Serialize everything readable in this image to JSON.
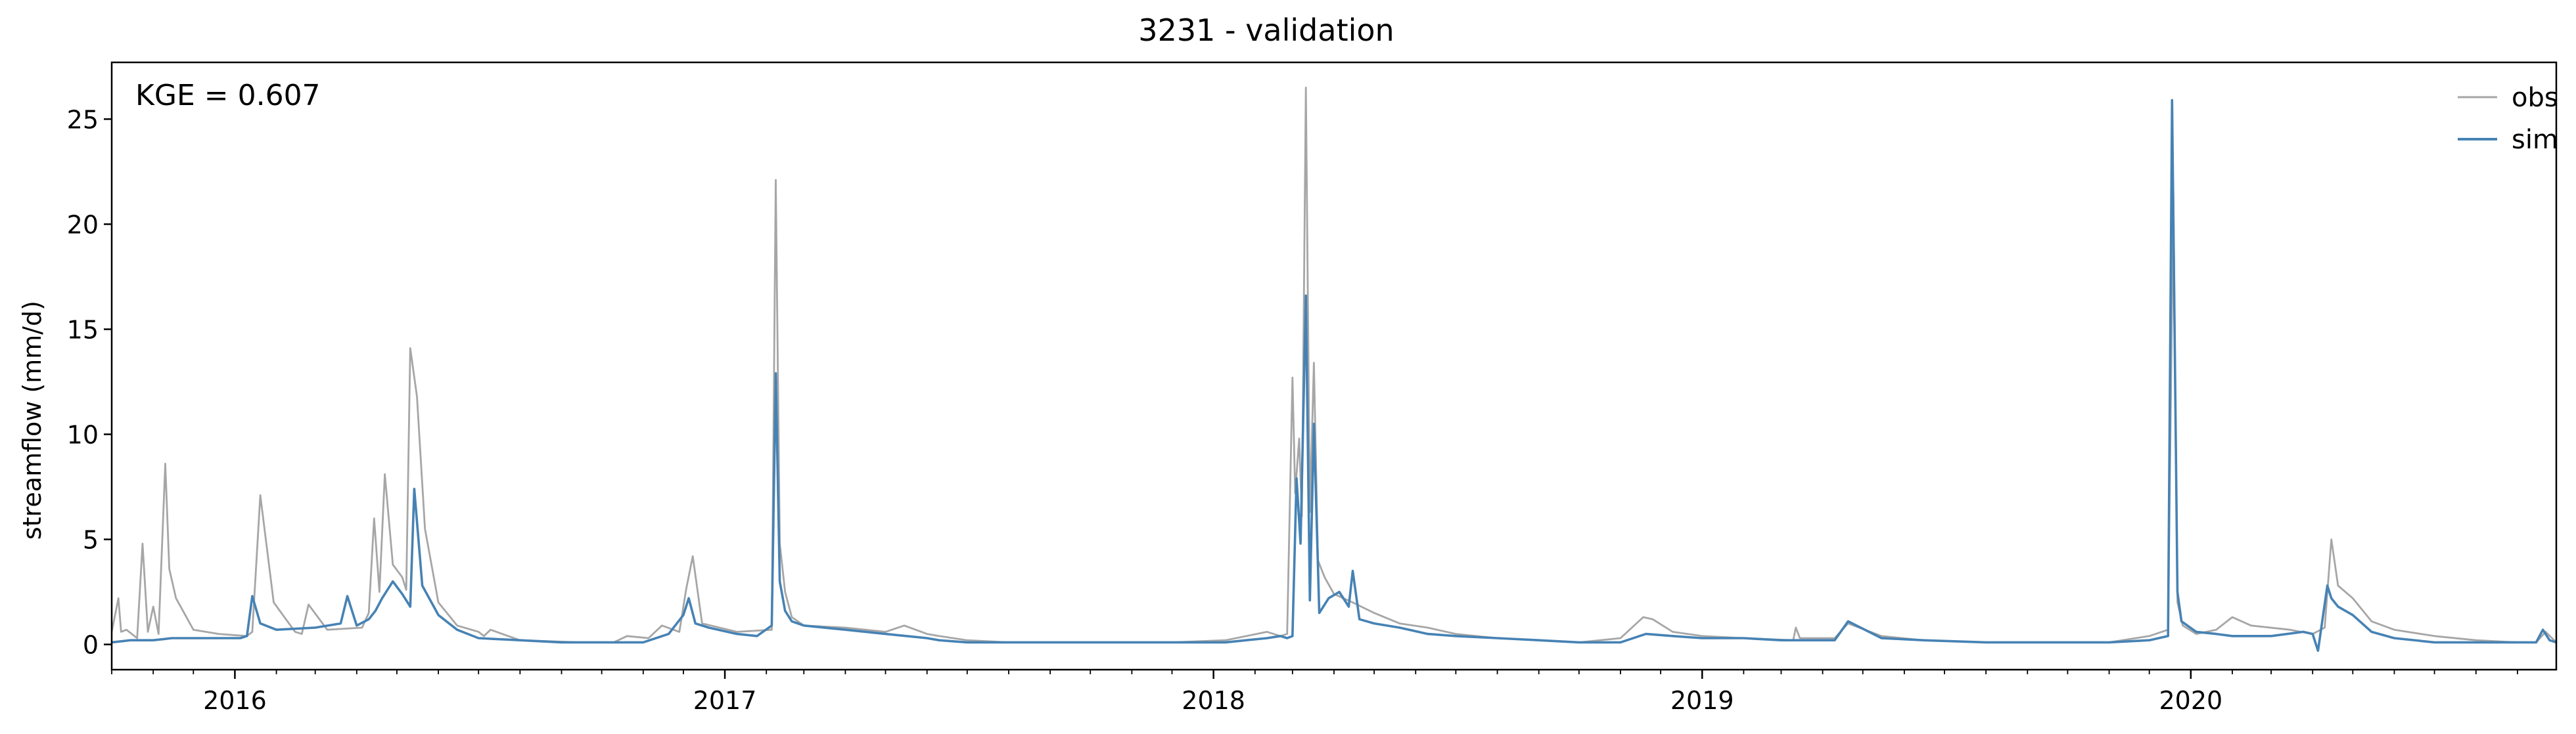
{
  "colors": {
    "obs": "#a6a6a6",
    "sim": "#4682b4",
    "axis": "#000000",
    "background": "#ffffff"
  },
  "chart_data": {
    "type": "line",
    "title": "3231 - validation",
    "xlabel": "",
    "ylabel": "streamflow (mm/d)",
    "annotation": "KGE = 0.607",
    "xlim": [
      "2015-10-01",
      "2020-09-30"
    ],
    "ylim": [
      -1.2,
      27.7
    ],
    "grid": false,
    "legend_position": "top-right",
    "x_ticks": [
      {
        "date": "2016-01-01",
        "label": "2016"
      },
      {
        "date": "2017-01-01",
        "label": "2017"
      },
      {
        "date": "2018-01-01",
        "label": "2018"
      },
      {
        "date": "2019-01-01",
        "label": "2019"
      },
      {
        "date": "2020-01-01",
        "label": "2020"
      }
    ],
    "y_ticks": [
      {
        "value": 0,
        "label": "0"
      },
      {
        "value": 5,
        "label": "5"
      },
      {
        "value": 10,
        "label": "10"
      },
      {
        "value": 15,
        "label": "15"
      },
      {
        "value": 20,
        "label": "20"
      },
      {
        "value": 25,
        "label": "25"
      }
    ],
    "series": [
      {
        "name": "obs",
        "color": "#a6a6a6",
        "x": [
          "2015-10-01",
          "2015-10-06",
          "2015-10-08",
          "2015-10-12",
          "2015-10-20",
          "2015-10-24",
          "2015-10-28",
          "2015-11-01",
          "2015-11-05",
          "2015-11-10",
          "2015-11-13",
          "2015-11-18",
          "2015-12-01",
          "2015-12-20",
          "2016-01-10",
          "2016-01-14",
          "2016-01-20",
          "2016-01-30",
          "2016-02-15",
          "2016-02-20",
          "2016-02-25",
          "2016-03-10",
          "2016-04-05",
          "2016-04-10",
          "2016-04-14",
          "2016-04-18",
          "2016-04-22",
          "2016-04-28",
          "2016-05-05",
          "2016-05-08",
          "2016-05-11",
          "2016-05-16",
          "2016-05-22",
          "2016-06-01",
          "2016-06-15",
          "2016-07-01",
          "2016-07-05",
          "2016-07-10",
          "2016-08-01",
          "2016-09-15",
          "2016-10-10",
          "2016-10-20",
          "2016-11-05",
          "2016-11-15",
          "2016-11-28",
          "2016-12-03",
          "2016-12-08",
          "2016-12-15",
          "2017-01-10",
          "2017-02-05",
          "2017-02-08",
          "2017-02-11",
          "2017-02-15",
          "2017-02-20",
          "2017-03-01",
          "2017-04-01",
          "2017-05-01",
          "2017-05-15",
          "2017-06-01",
          "2017-06-10",
          "2017-07-01",
          "2017-08-01",
          "2017-10-01",
          "2017-12-01",
          "2018-01-10",
          "2018-02-10",
          "2018-02-20",
          "2018-02-25",
          "2018-03-01",
          "2018-03-03",
          "2018-03-06",
          "2018-03-08",
          "2018-03-11",
          "2018-03-14",
          "2018-03-17",
          "2018-03-20",
          "2018-03-25",
          "2018-04-01",
          "2018-04-15",
          "2018-05-01",
          "2018-05-20",
          "2018-06-10",
          "2018-07-01",
          "2018-08-01",
          "2018-09-01",
          "2018-10-01",
          "2018-11-01",
          "2018-11-18",
          "2018-11-25",
          "2018-12-10",
          "2019-01-01",
          "2019-02-01",
          "2019-03-10",
          "2019-03-12",
          "2019-03-15",
          "2019-04-10",
          "2019-04-20",
          "2019-05-15",
          "2019-06-15",
          "2019-08-01",
          "2019-09-01",
          "2019-10-01",
          "2019-11-01",
          "2019-12-01",
          "2019-12-15",
          "2019-12-19",
          "2019-12-22",
          "2019-12-26",
          "2020-01-05",
          "2020-01-20",
          "2020-02-01",
          "2020-02-15",
          "2020-03-15",
          "2020-04-01",
          "2020-04-10",
          "2020-04-15",
          "2020-04-20",
          "2020-05-01",
          "2020-05-15",
          "2020-06-01",
          "2020-07-01",
          "2020-08-01",
          "2020-09-01",
          "2020-09-15",
          "2020-09-22",
          "2020-09-30"
        ],
        "y": [
          0.6,
          2.2,
          0.6,
          0.7,
          0.3,
          4.8,
          0.6,
          1.8,
          0.5,
          8.6,
          3.6,
          2.2,
          0.7,
          0.5,
          0.4,
          0.6,
          7.1,
          2.0,
          0.6,
          0.5,
          1.9,
          0.7,
          0.8,
          1.5,
          6.0,
          2.5,
          8.1,
          3.8,
          3.2,
          2.6,
          14.1,
          11.8,
          5.5,
          2.0,
          0.9,
          0.6,
          0.4,
          0.7,
          0.2,
          0.1,
          0.1,
          0.4,
          0.3,
          0.9,
          0.6,
          2.6,
          4.2,
          1.0,
          0.6,
          0.7,
          22.1,
          4.8,
          2.5,
          1.3,
          0.9,
          0.8,
          0.6,
          0.9,
          0.5,
          0.4,
          0.2,
          0.1,
          0.1,
          0.1,
          0.2,
          0.6,
          0.4,
          0.5,
          12.7,
          7.2,
          9.8,
          6.1,
          26.5,
          6.3,
          13.4,
          4.0,
          3.2,
          2.4,
          2.0,
          1.5,
          1.0,
          0.8,
          0.5,
          0.3,
          0.2,
          0.1,
          0.3,
          1.3,
          1.2,
          0.6,
          0.4,
          0.3,
          0.2,
          0.8,
          0.3,
          0.3,
          1.0,
          0.4,
          0.2,
          0.1,
          0.1,
          0.1,
          0.1,
          0.4,
          0.7,
          21.4,
          2.0,
          0.9,
          0.5,
          0.7,
          1.3,
          0.9,
          0.7,
          0.5,
          0.8,
          5.0,
          2.8,
          2.2,
          1.1,
          0.7,
          0.4,
          0.2,
          0.1,
          0.1,
          0.6,
          0.1
        ]
      },
      {
        "name": "sim",
        "color": "#4682b4",
        "x": [
          "2015-10-01",
          "2015-10-15",
          "2015-11-01",
          "2015-11-15",
          "2015-12-01",
          "2015-12-20",
          "2016-01-05",
          "2016-01-10",
          "2016-01-14",
          "2016-01-20",
          "2016-02-01",
          "2016-03-01",
          "2016-03-20",
          "2016-03-25",
          "2016-04-01",
          "2016-04-10",
          "2016-04-15",
          "2016-04-20",
          "2016-04-28",
          "2016-05-05",
          "2016-05-11",
          "2016-05-14",
          "2016-05-20",
          "2016-06-01",
          "2016-06-15",
          "2016-07-01",
          "2016-08-01",
          "2016-09-01",
          "2016-10-01",
          "2016-11-01",
          "2016-11-20",
          "2016-12-01",
          "2016-12-05",
          "2016-12-10",
          "2016-12-20",
          "2017-01-10",
          "2017-01-25",
          "2017-02-05",
          "2017-02-08",
          "2017-02-11",
          "2017-02-15",
          "2017-02-20",
          "2017-03-01",
          "2017-04-01",
          "2017-05-01",
          "2017-06-01",
          "2017-06-10",
          "2017-07-01",
          "2017-08-01",
          "2017-10-01",
          "2017-12-01",
          "2018-01-10",
          "2018-02-10",
          "2018-02-20",
          "2018-02-25",
          "2018-03-01",
          "2018-03-04",
          "2018-03-07",
          "2018-03-11",
          "2018-03-14",
          "2018-03-17",
          "2018-03-21",
          "2018-03-28",
          "2018-04-05",
          "2018-04-12",
          "2018-04-15",
          "2018-04-20",
          "2018-05-01",
          "2018-05-20",
          "2018-06-10",
          "2018-07-01",
          "2018-08-01",
          "2018-09-01",
          "2018-10-01",
          "2018-11-01",
          "2018-11-20",
          "2018-12-10",
          "2019-01-01",
          "2019-02-01",
          "2019-03-01",
          "2019-04-10",
          "2019-04-20",
          "2019-05-15",
          "2019-06-15",
          "2019-08-01",
          "2019-09-01",
          "2019-10-01",
          "2019-11-01",
          "2019-12-01",
          "2019-12-15",
          "2019-12-18",
          "2019-12-22",
          "2019-12-25",
          "2020-01-05",
          "2020-01-20",
          "2020-02-01",
          "2020-03-01",
          "2020-03-25",
          "2020-04-01",
          "2020-04-05",
          "2020-04-12",
          "2020-04-15",
          "2020-04-20",
          "2020-05-01",
          "2020-05-15",
          "2020-06-01",
          "2020-07-01",
          "2020-08-01",
          "2020-09-01",
          "2020-09-15",
          "2020-09-20",
          "2020-09-25",
          "2020-09-30"
        ],
        "y": [
          0.1,
          0.2,
          0.2,
          0.3,
          0.3,
          0.3,
          0.3,
          0.4,
          2.3,
          1.0,
          0.7,
          0.8,
          1.0,
          2.3,
          0.9,
          1.2,
          1.6,
          2.2,
          3.0,
          2.4,
          1.8,
          7.4,
          2.8,
          1.4,
          0.7,
          0.3,
          0.2,
          0.1,
          0.1,
          0.1,
          0.5,
          1.4,
          2.2,
          1.0,
          0.8,
          0.5,
          0.4,
          0.9,
          12.9,
          3.0,
          1.6,
          1.1,
          0.9,
          0.7,
          0.5,
          0.3,
          0.2,
          0.1,
          0.1,
          0.1,
          0.1,
          0.1,
          0.3,
          0.4,
          0.3,
          0.4,
          7.9,
          4.8,
          16.6,
          2.1,
          10.5,
          1.5,
          2.2,
          2.5,
          1.8,
          3.5,
          1.2,
          1.0,
          0.8,
          0.5,
          0.4,
          0.3,
          0.2,
          0.1,
          0.1,
          0.5,
          0.4,
          0.3,
          0.3,
          0.2,
          0.2,
          1.1,
          0.3,
          0.2,
          0.1,
          0.1,
          0.1,
          0.1,
          0.2,
          0.4,
          25.9,
          2.5,
          1.1,
          0.6,
          0.5,
          0.4,
          0.4,
          0.6,
          0.5,
          -0.3,
          2.8,
          2.2,
          1.8,
          1.4,
          0.6,
          0.3,
          0.1,
          0.1,
          0.1,
          0.1,
          0.7,
          0.2,
          0.1
        ]
      }
    ]
  }
}
